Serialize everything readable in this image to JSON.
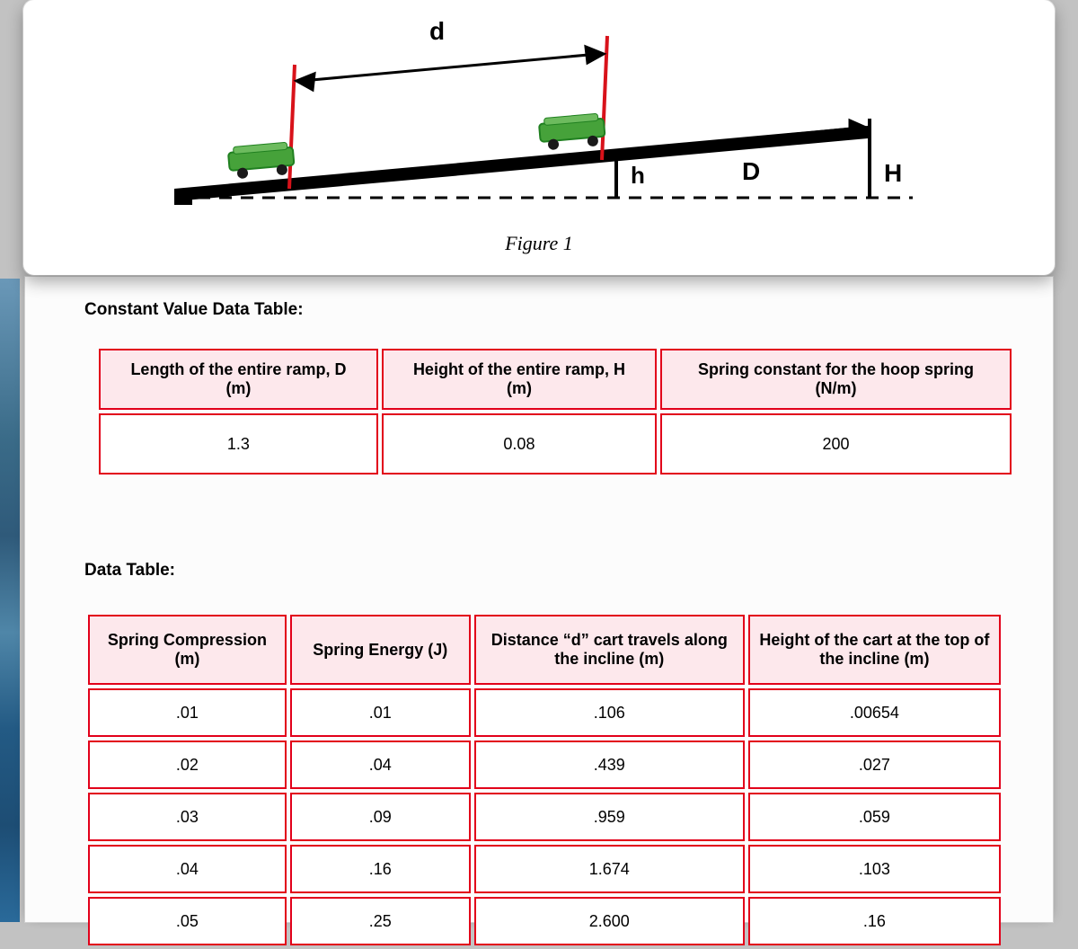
{
  "figure": {
    "caption": "Figure 1",
    "labels": {
      "d": "d",
      "h": "h",
      "D": "D",
      "H": "H"
    },
    "colors": {
      "track": "#000000",
      "tick": "#d8121a",
      "dash": "#000000",
      "cart_body": "#46a23a",
      "cart_outline": "#208020",
      "wheel": "#1a1a1a"
    },
    "label_font_size": 26
  },
  "sections": {
    "constants_title": "Constant Value Data Table:",
    "data_title": "Data Table:"
  },
  "constants": {
    "columns": [
      "Length of the entire ramp, D (m)",
      "Height of the entire ramp, H (m)",
      "Spring constant for the hoop spring (N/m)"
    ],
    "row": [
      "1.3",
      "0.08",
      "200"
    ]
  },
  "data": {
    "columns": [
      "Spring Compression (m)",
      "Spring Energy (J)",
      "Distance “d” cart travels along the incline (m)",
      "Height of the cart at the top of the incline (m)"
    ],
    "rows": [
      [
        ".01",
        ".01",
        ".106",
        ".00654"
      ],
      [
        ".02",
        ".04",
        ".439",
        ".027"
      ],
      [
        ".03",
        ".09",
        ".959",
        ".059"
      ],
      [
        ".04",
        ".16",
        "1.674",
        ".103"
      ],
      [
        ".05",
        ".25",
        "2.600",
        ".16"
      ]
    ]
  },
  "style": {
    "table_border_color": "#e2001a",
    "table_header_bg": "#fde8ec",
    "body_font_size": 18
  }
}
